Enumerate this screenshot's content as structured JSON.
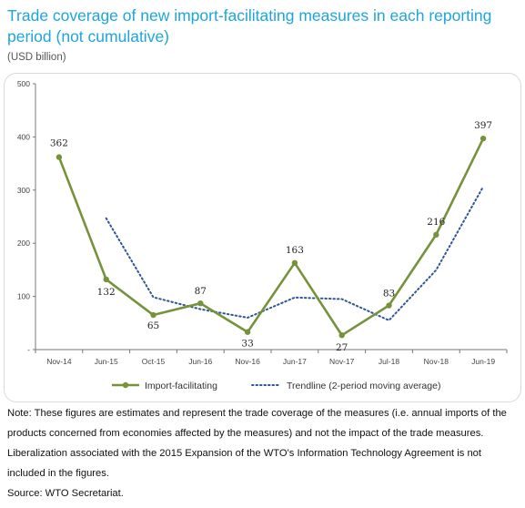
{
  "title": "Trade coverage of new import-facilitating measures in each reporting period (not cumulative)",
  "unit_label": "(USD billion)",
  "notes": [
    "Note: These figures are estimates and represent the trade coverage of the measures (i.e. annual imports of the products concerned from economies affected by the measures) and not the impact of the trade measures.",
    "Liberalization associated with the 2015 Expansion of the WTO's Information Technology Agreement is not included in the figures.",
    "Source: WTO Secretariat."
  ],
  "chart_data": {
    "type": "line",
    "title": "Trade coverage of new import-facilitating measures in each reporting period (not cumulative)",
    "ylabel": "(USD billion)",
    "xlabel": "",
    "categories": [
      "Nov-14",
      "Jun-15",
      "Oct-15",
      "Jun-16",
      "Nov-16",
      "Jun-17",
      "Nov-17",
      "Jul-18",
      "Nov-18",
      "Jun-19"
    ],
    "ylim": [
      0,
      500
    ],
    "yticks": [
      0,
      100,
      200,
      300,
      400,
      500
    ],
    "ytick_labels": [
      "-",
      "100",
      "200",
      "300",
      "400",
      "500"
    ],
    "grid": false,
    "legend": "bottom",
    "series": [
      {
        "name": "Import-facilitating",
        "color": "#76923c",
        "style": "solid",
        "markers": true,
        "values": [
          362,
          132,
          65,
          87,
          33,
          163,
          27,
          83,
          216,
          397
        ],
        "data_labels": [
          "362",
          "132",
          "65",
          "87",
          "33",
          "163",
          "27",
          "83",
          "216",
          "397"
        ]
      },
      {
        "name": "Trendline (2-period moving average)",
        "color": "#2e5597",
        "style": "dotted",
        "markers": false,
        "values": [
          null,
          247,
          98.5,
          76,
          60,
          98,
          95,
          55,
          149.5,
          306.5
        ]
      }
    ]
  }
}
